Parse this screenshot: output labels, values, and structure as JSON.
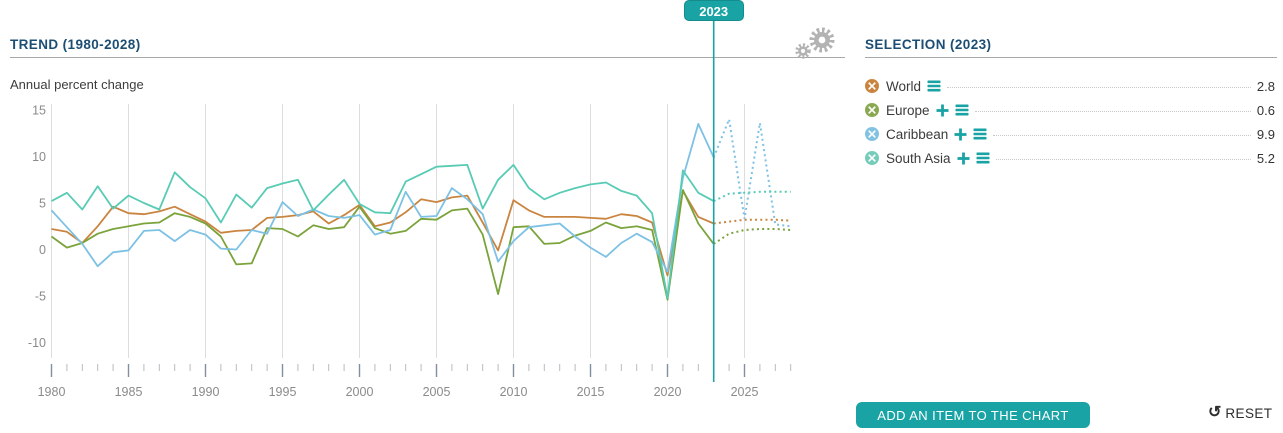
{
  "header": {
    "trend_title": "TREND (1980-2028)",
    "selection_title": "SELECTION (2023)",
    "subtitle": "Annual percent change",
    "marker_year": "2023"
  },
  "colors": {
    "accent_teal": "#1aa3a4",
    "title_blue": "#1c4e74",
    "grid": "#dddddd",
    "axis_text": "#8b8b8b",
    "world": "#c98540",
    "europe": "#7ba33c",
    "caribbean": "#7dc1e4",
    "south_asia": "#58cbb5"
  },
  "selection": {
    "rows": [
      {
        "label": "World",
        "value": "2.8",
        "color": "#c98540",
        "has_add": false
      },
      {
        "label": "Europe",
        "value": "0.6",
        "color": "#8aa851",
        "has_add": true
      },
      {
        "label": "Caribbean",
        "value": "9.9",
        "color": "#82c3e2",
        "has_add": true
      },
      {
        "label": "South Asia",
        "value": "5.2",
        "color": "#76ccba",
        "has_add": true
      }
    ],
    "add_button_label": "ADD AN ITEM TO THE CHART",
    "reset_label": "RESET",
    "reset_icon": "↺"
  },
  "icons": {
    "settings": "gear",
    "remove": "circle-x",
    "add": "plus",
    "menu": "hamburger"
  },
  "chart_data": {
    "type": "line",
    "title": "TREND (1980-2028)",
    "subtitle": "Annual percent change",
    "x_start": 1980,
    "x_end": 2028,
    "forecast_from": 2023,
    "marker_year": 2023,
    "ylim": [
      -10,
      15
    ],
    "yticks": [
      15,
      10,
      5,
      0,
      -5,
      -10
    ],
    "xtick_labels": [
      1980,
      1985,
      1990,
      1995,
      2000,
      2005,
      2010,
      2015,
      2020,
      2025
    ],
    "grid_years": [
      1980,
      1985,
      1990,
      1995,
      2000,
      2005,
      2010,
      2015,
      2020,
      2025
    ],
    "grid_on": true,
    "legend_position": "right-panel",
    "series": [
      {
        "name": "World",
        "color": "#c98540",
        "values": [
          2.2,
          1.9,
          0.7,
          2.5,
          4.6,
          3.9,
          3.8,
          4.1,
          4.6,
          3.8,
          3.0,
          1.8,
          2.0,
          2.1,
          3.4,
          3.5,
          3.7,
          4.1,
          2.8,
          3.7,
          4.8,
          2.5,
          2.9,
          4.0,
          5.4,
          5.1,
          5.6,
          5.8,
          2.9,
          -0.1,
          5.3,
          4.2,
          3.5,
          3.5,
          3.5,
          3.4,
          3.3,
          3.8,
          3.6,
          2.9,
          -2.8,
          6.3,
          3.5,
          2.8,
          3.0,
          3.2,
          3.2,
          3.2,
          3.1
        ]
      },
      {
        "name": "Europe",
        "color": "#7ba33c",
        "values": [
          1.4,
          0.2,
          0.7,
          1.7,
          2.2,
          2.5,
          2.8,
          2.9,
          3.9,
          3.5,
          2.8,
          1.4,
          -1.6,
          -1.5,
          2.3,
          2.2,
          1.4,
          2.6,
          2.2,
          2.4,
          4.6,
          2.3,
          1.7,
          2.0,
          3.3,
          3.2,
          4.2,
          4.4,
          1.6,
          -4.8,
          2.4,
          2.5,
          0.6,
          0.7,
          1.5,
          2.0,
          2.9,
          2.3,
          2.5,
          2.1,
          -5.4,
          6.4,
          2.8,
          0.6,
          1.7,
          2.1,
          2.2,
          2.2,
          2.1
        ]
      },
      {
        "name": "Caribbean",
        "color": "#7dc1e4",
        "values": [
          4.2,
          2.4,
          0.6,
          -1.8,
          -0.3,
          -0.1,
          2.0,
          2.1,
          0.9,
          2.1,
          1.6,
          0.1,
          0.0,
          2.1,
          1.7,
          5.1,
          3.6,
          4.3,
          3.6,
          3.4,
          3.7,
          1.6,
          2.1,
          6.2,
          3.5,
          3.6,
          6.6,
          5.4,
          3.8,
          -1.3,
          0.9,
          2.4,
          2.6,
          2.8,
          1.4,
          0.2,
          -0.8,
          0.7,
          1.7,
          0.8,
          -2.4,
          7.7,
          13.5,
          9.9,
          14.0,
          3.3,
          13.6,
          2.7,
          2.5
        ]
      },
      {
        "name": "South Asia",
        "color": "#58cbb5",
        "values": [
          5.2,
          6.1,
          4.3,
          6.8,
          4.4,
          5.8,
          5.0,
          4.3,
          8.3,
          6.7,
          5.5,
          2.9,
          5.9,
          4.5,
          6.6,
          7.1,
          7.5,
          4.2,
          5.9,
          7.5,
          4.9,
          4.0,
          3.9,
          7.3,
          8.1,
          8.9,
          9.0,
          9.1,
          4.4,
          7.5,
          9.1,
          6.6,
          5.4,
          6.1,
          6.6,
          7.0,
          7.2,
          6.3,
          5.8,
          3.9,
          -5.2,
          8.5,
          6.1,
          5.2,
          6.0,
          6.1,
          6.2,
          6.2,
          6.2
        ]
      }
    ]
  }
}
